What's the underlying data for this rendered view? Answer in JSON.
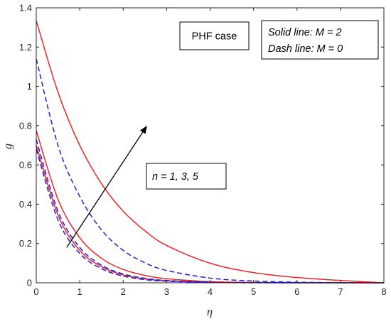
{
  "chart_data": {
    "type": "line",
    "xlabel": "η",
    "ylabel": "g",
    "xlim": [
      0,
      8
    ],
    "ylim": [
      0,
      1.4
    ],
    "xticks": [
      "0",
      "1",
      "2",
      "3",
      "4",
      "5",
      "6",
      "7",
      "8"
    ],
    "yticks": [
      "0",
      "0.2",
      "0.4",
      "0.6",
      "0.8",
      "1",
      "1.2",
      "1.4"
    ],
    "grid": false,
    "series": [
      {
        "style": "solid",
        "color": "#e8262b",
        "x": [
          0,
          0.5,
          1,
          1.5,
          2,
          2.5,
          3,
          4,
          5,
          6,
          7,
          8
        ],
        "y": [
          1.335,
          0.97,
          0.7,
          0.505,
          0.365,
          0.265,
          0.19,
          0.1,
          0.052,
          0.027,
          0.012,
          0.0
        ]
      },
      {
        "style": "solid",
        "color": "#e8262b",
        "x": [
          0,
          0.5,
          1,
          1.5,
          2,
          2.5,
          3,
          4,
          5,
          6,
          7,
          8
        ],
        "y": [
          0.775,
          0.425,
          0.23,
          0.125,
          0.068,
          0.038,
          0.021,
          0.006,
          0.002,
          0.001,
          0.0,
          0.0
        ]
      },
      {
        "style": "solid",
        "color": "#e8262b",
        "x": [
          0,
          0.5,
          1,
          1.5,
          2,
          2.5,
          3,
          4,
          5,
          6,
          7,
          8
        ],
        "y": [
          0.7,
          0.345,
          0.165,
          0.082,
          0.04,
          0.02,
          0.01,
          0.003,
          0.001,
          0.0,
          0.0,
          0.0
        ]
      },
      {
        "style": "dashed",
        "color": "#1f1fe0",
        "x": [
          0,
          0.5,
          1,
          1.5,
          2,
          2.5,
          3,
          4,
          5,
          6,
          7,
          8
        ],
        "y": [
          1.14,
          0.7,
          0.44,
          0.27,
          0.165,
          0.102,
          0.063,
          0.024,
          0.009,
          0.003,
          0.001,
          0.0
        ]
      },
      {
        "style": "dashed",
        "color": "#1f1fe0",
        "x": [
          0,
          0.5,
          1,
          1.5,
          2,
          2.5,
          3,
          4,
          5,
          6,
          7,
          8
        ],
        "y": [
          0.73,
          0.365,
          0.18,
          0.09,
          0.045,
          0.023,
          0.012,
          0.003,
          0.001,
          0.0,
          0.0,
          0.0
        ]
      },
      {
        "style": "dashed",
        "color": "#1f1fe0",
        "x": [
          0,
          0.5,
          1,
          1.5,
          2,
          2.5,
          3,
          4,
          5,
          6,
          7,
          8
        ],
        "y": [
          0.68,
          0.32,
          0.15,
          0.072,
          0.034,
          0.016,
          0.008,
          0.002,
          0.0,
          0.0,
          0.0,
          0.0
        ]
      }
    ],
    "annotations": {
      "case_box": "PHF case",
      "legend_line1": "Solid line: M = 2",
      "legend_line2": "Dash line: M = 0",
      "arrow_label": "n = 1, 3, 5",
      "arrow": {
        "from": [
          0.7,
          0.18
        ],
        "to": [
          2.55,
          0.8
        ]
      }
    }
  }
}
